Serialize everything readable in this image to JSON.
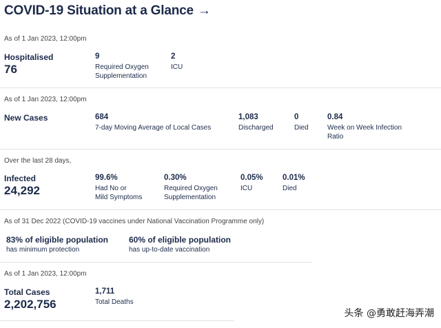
{
  "header": {
    "title": "COVID-19 Situation at a Glance",
    "arrow": "→"
  },
  "hospital": {
    "as_of": "As of 1 Jan 2023, 12:00pm",
    "label": "Hospitalised",
    "value": "76",
    "oxygen_value": "9",
    "oxygen_caption_1": "Required Oxygen",
    "oxygen_caption_2": "Supplementation",
    "icu_value": "2",
    "icu_caption": "ICU"
  },
  "cases": {
    "as_of": "As of 1 Jan 2023, 12:00pm",
    "label": "New Cases",
    "avg_value": "684",
    "avg_caption": "7-day Moving Average of Local Cases",
    "discharged_value": "1,083",
    "discharged_caption": "Discharged",
    "died_value": "0",
    "died_caption": "Died",
    "ratio_value": "0.84",
    "ratio_caption_1": "Week on Week Infection",
    "ratio_caption_2": "Ratio"
  },
  "infected": {
    "as_of": "Over the last 28 days,",
    "label": "Infected",
    "value": "24,292",
    "mild_value": "99.6%",
    "mild_caption_1": "Had No or",
    "mild_caption_2": "Mild Symptoms",
    "oxygen_value": "0.30%",
    "oxygen_caption_1": "Required Oxygen",
    "oxygen_caption_2": "Supplementation",
    "icu_value": "0.05%",
    "icu_caption": "ICU",
    "died_value": "0.01%",
    "died_caption": "Died"
  },
  "vaccination": {
    "as_of": "As of 31 Dec 2022 (COVID-19 vaccines under National Vaccination Programme only)",
    "min_value": "83% of eligible population",
    "min_caption": "has minimum protection",
    "uptodate_value": "60% of eligible population",
    "uptodate_caption": "has up-to-date vaccination"
  },
  "totals": {
    "as_of": "As of 1 Jan 2023, 12:00pm",
    "label": "Total Cases",
    "value": "2,202,756",
    "deaths_value": "1,711",
    "deaths_caption": "Total Deaths"
  },
  "watermark": "头条 @勇敢赶海弄潮"
}
